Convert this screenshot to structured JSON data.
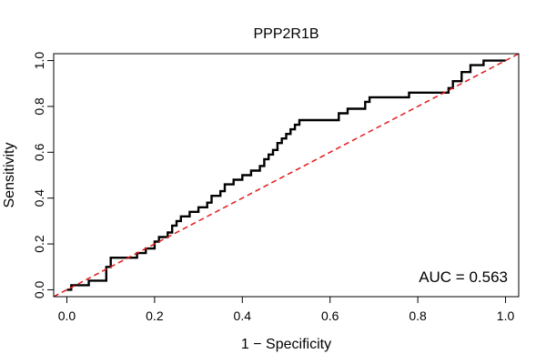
{
  "chart_data": {
    "type": "line",
    "title": "PPP2R1B",
    "xlabel": "1 − Specificity",
    "ylabel": "Sensitivity",
    "xlim": [
      -0.03,
      1.03
    ],
    "ylim": [
      -0.03,
      1.03
    ],
    "x_ticks": [
      0.0,
      0.2,
      0.4,
      0.6,
      0.8,
      1.0
    ],
    "y_ticks": [
      0.0,
      0.2,
      0.4,
      0.6,
      0.8,
      1.0
    ],
    "x_tick_labels": [
      "0.0",
      "0.2",
      "0.4",
      "0.6",
      "0.8",
      "1.0"
    ],
    "y_tick_labels": [
      "0.0",
      "0.2",
      "0.4",
      "0.6",
      "0.8",
      "1.0"
    ],
    "grid": false,
    "series": [
      {
        "kind": "roc",
        "color": "#000000",
        "x": [
          0.0,
          0.01,
          0.01,
          0.05,
          0.05,
          0.09,
          0.09,
          0.1,
          0.1,
          0.12,
          0.12,
          0.16,
          0.16,
          0.18,
          0.18,
          0.2,
          0.2,
          0.21,
          0.21,
          0.23,
          0.23,
          0.24,
          0.24,
          0.25,
          0.25,
          0.26,
          0.26,
          0.28,
          0.28,
          0.3,
          0.3,
          0.32,
          0.32,
          0.33,
          0.33,
          0.35,
          0.35,
          0.36,
          0.36,
          0.38,
          0.38,
          0.4,
          0.4,
          0.42,
          0.42,
          0.44,
          0.44,
          0.45,
          0.45,
          0.46,
          0.46,
          0.47,
          0.47,
          0.48,
          0.48,
          0.49,
          0.49,
          0.5,
          0.5,
          0.51,
          0.51,
          0.52,
          0.52,
          0.53,
          0.53,
          0.62,
          0.62,
          0.64,
          0.64,
          0.68,
          0.68,
          0.69,
          0.69,
          0.78,
          0.78,
          0.83,
          0.83,
          0.87,
          0.87,
          0.88,
          0.88,
          0.9,
          0.9,
          0.92,
          0.92,
          0.95,
          0.95,
          1.0
        ],
        "y": [
          0.0,
          0.0,
          0.02,
          0.02,
          0.04,
          0.04,
          0.1,
          0.1,
          0.14,
          0.14,
          0.14,
          0.14,
          0.16,
          0.16,
          0.18,
          0.18,
          0.21,
          0.21,
          0.23,
          0.23,
          0.25,
          0.25,
          0.28,
          0.28,
          0.3,
          0.3,
          0.32,
          0.32,
          0.34,
          0.34,
          0.36,
          0.36,
          0.38,
          0.38,
          0.41,
          0.41,
          0.43,
          0.43,
          0.46,
          0.46,
          0.48,
          0.48,
          0.5,
          0.5,
          0.52,
          0.52,
          0.54,
          0.54,
          0.57,
          0.57,
          0.59,
          0.59,
          0.61,
          0.61,
          0.64,
          0.64,
          0.66,
          0.66,
          0.68,
          0.68,
          0.7,
          0.7,
          0.72,
          0.72,
          0.74,
          0.74,
          0.77,
          0.77,
          0.79,
          0.79,
          0.82,
          0.82,
          0.84,
          0.84,
          0.86,
          0.86,
          0.86,
          0.86,
          0.88,
          0.88,
          0.91,
          0.91,
          0.95,
          0.95,
          0.98,
          0.98,
          1.0,
          1.0
        ]
      },
      {
        "kind": "reference",
        "color": "#e31a1c",
        "style": "dashed",
        "x": [
          -0.03,
          1.03
        ],
        "y": [
          -0.03,
          1.03
        ]
      }
    ],
    "annotations": [
      {
        "text": "AUC = 0.563",
        "placement": "bottom-right"
      }
    ]
  }
}
